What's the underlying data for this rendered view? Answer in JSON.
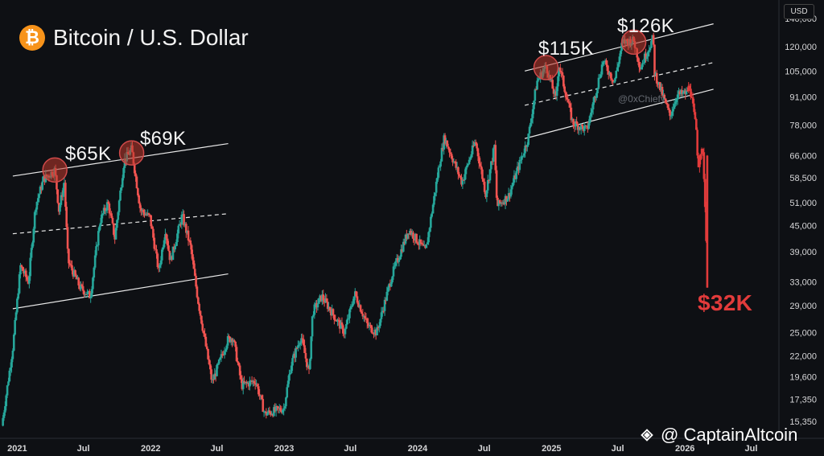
{
  "header": {
    "title": "Bitcoin / U.S. Dollar",
    "logo_icon": "bitcoin-logo-icon",
    "logo_glyph": "₿",
    "currency": "USD"
  },
  "annotations": {
    "peak1": "$65K",
    "peak2": "$69K",
    "peak3": "$115K",
    "peak4": "$126K",
    "crash_target": "$32K"
  },
  "watermark": "@0xChiefy",
  "credit": {
    "text": "@ CaptainAltcoin",
    "icon": "binance-square-icon"
  },
  "colors": {
    "up": "#26a69a",
    "down": "#ef5350",
    "crash": "#e23b3b",
    "background": "#0e1014",
    "circle": "#c0392b"
  },
  "chart_data": {
    "type": "candlestick",
    "title": "Bitcoin / U.S. Dollar",
    "ylabel": "USD",
    "y_scale": "log",
    "ylim": [
      14000,
      155000
    ],
    "yticks": [
      15350,
      17350,
      19600,
      22000,
      25000,
      29000,
      33000,
      39000,
      45000,
      51000,
      58500,
      66000,
      78000,
      91000,
      105000,
      120000,
      140000
    ],
    "ytick_labels": [
      "15,350",
      "17,350",
      "19,600",
      "22,000",
      "25,000",
      "29,000",
      "33,000",
      "39,000",
      "45,000",
      "51,000",
      "58,500",
      "66,000",
      "78,000",
      "91,000",
      "105,000",
      "120,000",
      "140,000"
    ],
    "xlim": [
      "2020-11-15",
      "2026-09-15"
    ],
    "xticks": [
      "2021-01-01",
      "2021-07-01",
      "2022-01-01",
      "2022-07-01",
      "2023-01-01",
      "2023-07-01",
      "2024-01-01",
      "2024-07-01",
      "2025-01-01",
      "2025-07-01",
      "2026-01-01",
      "2026-07-01"
    ],
    "xtick_labels": [
      "2021",
      "Jul",
      "2022",
      "Jul",
      "2023",
      "Jul",
      "2024",
      "Jul",
      "2025",
      "Jul",
      "2026",
      "Jul"
    ],
    "price_path": [
      [
        "2020-11-20",
        15000
      ],
      [
        "2020-12-20",
        23000
      ],
      [
        "2021-01-10",
        36000
      ],
      [
        "2021-02-01",
        33000
      ],
      [
        "2021-02-20",
        50000
      ],
      [
        "2021-03-14",
        58000
      ],
      [
        "2021-04-14",
        61000
      ],
      [
        "2021-04-25",
        49000
      ],
      [
        "2021-05-10",
        57000
      ],
      [
        "2021-05-20",
        37000
      ],
      [
        "2021-06-22",
        32000
      ],
      [
        "2021-07-20",
        30500
      ],
      [
        "2021-08-15",
        46000
      ],
      [
        "2021-09-06",
        51000
      ],
      [
        "2021-09-25",
        42000
      ],
      [
        "2021-10-20",
        64000
      ],
      [
        "2021-11-10",
        68500
      ],
      [
        "2021-12-04",
        49000
      ],
      [
        "2021-12-30",
        47000
      ],
      [
        "2022-01-23",
        35000
      ],
      [
        "2022-02-10",
        44000
      ],
      [
        "2022-02-24",
        37000
      ],
      [
        "2022-03-28",
        47500
      ],
      [
        "2022-04-20",
        40000
      ],
      [
        "2022-05-10",
        30000
      ],
      [
        "2022-06-18",
        19000
      ],
      [
        "2022-07-30",
        24000
      ],
      [
        "2022-08-14",
        24400
      ],
      [
        "2022-09-07",
        18700
      ],
      [
        "2022-10-15",
        19200
      ],
      [
        "2022-11-09",
        16000
      ],
      [
        "2022-12-31",
        16500
      ],
      [
        "2023-01-20",
        21000
      ],
      [
        "2023-02-16",
        24500
      ],
      [
        "2023-03-10",
        20000
      ],
      [
        "2023-03-20",
        28000
      ],
      [
        "2023-04-14",
        30500
      ],
      [
        "2023-06-15",
        25000
      ],
      [
        "2023-07-13",
        31000
      ],
      [
        "2023-08-17",
        26000
      ],
      [
        "2023-09-11",
        25000
      ],
      [
        "2023-10-24",
        34500
      ],
      [
        "2023-12-08",
        44000
      ],
      [
        "2024-01-23",
        39000
      ],
      [
        "2024-02-28",
        62000
      ],
      [
        "2024-03-14",
        73000
      ],
      [
        "2024-05-01",
        57000
      ],
      [
        "2024-06-07",
        71500
      ],
      [
        "2024-07-05",
        53500
      ],
      [
        "2024-07-29",
        69500
      ],
      [
        "2024-08-05",
        50000
      ],
      [
        "2024-09-06",
        53000
      ],
      [
        "2024-10-29",
        72500
      ],
      [
        "2024-11-22",
        99000
      ],
      [
        "2024-12-17",
        108000
      ],
      [
        "2025-01-13",
        90000
      ],
      [
        "2025-01-21",
        109000
      ],
      [
        "2025-02-28",
        79000
      ],
      [
        "2025-04-08",
        76000
      ],
      [
        "2025-05-22",
        111000
      ],
      [
        "2025-06-22",
        99000
      ],
      [
        "2025-07-14",
        123000
      ],
      [
        "2025-08-14",
        124000
      ],
      [
        "2025-09-01",
        107000
      ],
      [
        "2025-10-06",
        126000
      ],
      [
        "2025-10-10",
        104000
      ],
      [
        "2025-11-21",
        82000
      ],
      [
        "2025-12-10",
        92000
      ],
      [
        "2026-01-05",
        93000
      ],
      [
        "2026-01-14",
        97000
      ],
      [
        "2026-02-01",
        76000
      ],
      [
        "2026-02-06",
        62000
      ],
      [
        "2026-02-12",
        68000
      ],
      [
        "2026-02-20",
        66000
      ],
      [
        "2026-03-05",
        32000
      ]
    ],
    "channels": [
      {
        "name": "upper-2021",
        "x": [
          "2020-12-20",
          "2022-08-01"
        ],
        "y": [
          59000,
          70500
        ],
        "style": "solid"
      },
      {
        "name": "mid-2021",
        "x": [
          "2020-12-20",
          "2022-08-01"
        ],
        "y": [
          43000,
          48000
        ],
        "style": "dashed"
      },
      {
        "name": "lower-2021",
        "x": [
          "2020-12-20",
          "2022-08-01"
        ],
        "y": [
          28500,
          34500
        ],
        "style": "solid"
      },
      {
        "name": "upper-2025",
        "x": [
          "2024-10-20",
          "2026-03-20"
        ],
        "y": [
          105000,
          136000
        ],
        "style": "solid"
      },
      {
        "name": "mid-2025",
        "x": [
          "2024-10-20",
          "2026-03-20"
        ],
        "y": [
          87000,
          110000
        ],
        "style": "dashed"
      },
      {
        "name": "lower-2025",
        "x": [
          "2024-10-20",
          "2026-03-20"
        ],
        "y": [
          72500,
          95000
        ],
        "style": "solid"
      }
    ],
    "highlights": [
      {
        "label": "$65K",
        "x": "2021-04-14",
        "y": 61000
      },
      {
        "label": "$69K",
        "x": "2021-11-10",
        "y": 67000
      },
      {
        "label": "$115K",
        "x": "2024-12-17",
        "y": 107000
      },
      {
        "label": "$126K",
        "x": "2025-08-14",
        "y": 123000
      }
    ],
    "grid": false,
    "legend": "none"
  }
}
